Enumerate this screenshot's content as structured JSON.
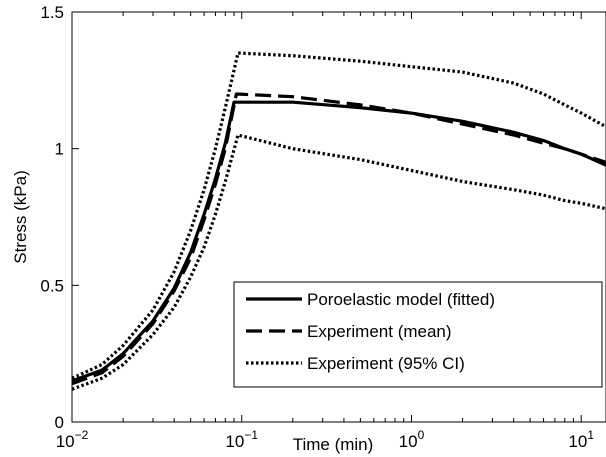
{
  "chart_data": {
    "type": "line",
    "xlabel": "Time (min)",
    "ylabel": "Stress (kPa)",
    "xscale": "log",
    "xlim": [
      0.01,
      14
    ],
    "ylim": [
      0,
      1.5
    ],
    "x_ticks": [
      {
        "value": 0.01,
        "base": "10",
        "exp": "−2"
      },
      {
        "value": 0.1,
        "base": "10",
        "exp": "−1"
      },
      {
        "value": 1,
        "base": "10",
        "exp": "0"
      },
      {
        "value": 10,
        "base": "10",
        "exp": "1"
      }
    ],
    "y_ticks": [
      {
        "value": 0,
        "label": "0"
      },
      {
        "value": 0.5,
        "label": "0.5"
      },
      {
        "value": 1,
        "label": "1"
      },
      {
        "value": 1.5,
        "label": "1.5"
      }
    ],
    "grid": false,
    "legend_position": "bottom-right",
    "series": [
      {
        "name": "Poroelastic model (fitted)",
        "style": "solid",
        "color": "#000000",
        "x": [
          0.01,
          0.015,
          0.02,
          0.03,
          0.04,
          0.05,
          0.06,
          0.07,
          0.08,
          0.09,
          0.2,
          0.5,
          1,
          2,
          4,
          6,
          8,
          10,
          14
        ],
        "y": [
          0.15,
          0.19,
          0.25,
          0.37,
          0.49,
          0.62,
          0.76,
          0.89,
          1.02,
          1.17,
          1.17,
          1.15,
          1.13,
          1.1,
          1.06,
          1.03,
          1.0,
          0.98,
          0.94
        ]
      },
      {
        "name": "Experiment (mean)",
        "style": "dashed",
        "color": "#000000",
        "x": [
          0.01,
          0.015,
          0.02,
          0.03,
          0.04,
          0.05,
          0.06,
          0.07,
          0.08,
          0.093,
          0.2,
          0.5,
          1,
          2,
          4,
          6,
          8,
          10,
          14
        ],
        "y": [
          0.14,
          0.18,
          0.24,
          0.36,
          0.48,
          0.6,
          0.74,
          0.87,
          1.0,
          1.2,
          1.19,
          1.16,
          1.13,
          1.09,
          1.05,
          1.02,
          1.0,
          0.98,
          0.95
        ]
      },
      {
        "name": "Experiment (95% CI)",
        "style": "dotted",
        "color": "#000000",
        "x": [
          0.01,
          0.015,
          0.02,
          0.03,
          0.04,
          0.05,
          0.06,
          0.07,
          0.08,
          0.095,
          0.2,
          0.5,
          1,
          2,
          4,
          6,
          8,
          10,
          14
        ],
        "y": [
          0.16,
          0.21,
          0.28,
          0.41,
          0.55,
          0.7,
          0.85,
          1.0,
          1.15,
          1.35,
          1.34,
          1.32,
          1.3,
          1.28,
          1.24,
          1.2,
          1.16,
          1.13,
          1.08
        ]
      },
      {
        "name": "",
        "style": "dotted",
        "color": "#000000",
        "x": [
          0.01,
          0.015,
          0.02,
          0.03,
          0.04,
          0.05,
          0.06,
          0.07,
          0.08,
          0.095,
          0.2,
          0.5,
          1,
          2,
          4,
          6,
          8,
          10,
          14
        ],
        "y": [
          0.12,
          0.16,
          0.21,
          0.32,
          0.42,
          0.53,
          0.64,
          0.76,
          0.88,
          1.05,
          1.0,
          0.96,
          0.92,
          0.88,
          0.85,
          0.83,
          0.81,
          0.8,
          0.78
        ]
      }
    ]
  }
}
